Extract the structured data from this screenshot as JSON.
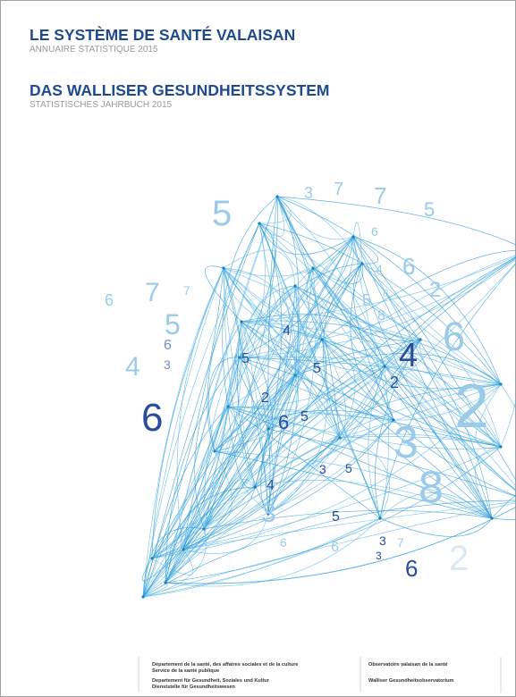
{
  "header": {
    "title_fr": "LE SYSTÈME DE SANTÉ VALAISAN",
    "subtitle_fr": "ANNUAIRE STATISTIQUE 2015",
    "title_de": "DAS WALLISER GESUNDHEITSSYSTEM",
    "subtitle_de": "STATISTISCHES JAHRBUCH 2015"
  },
  "cover_art": {
    "digits": [
      "5",
      "3",
      "7",
      "7",
      "5",
      "6",
      "6",
      "7",
      "7",
      "5",
      "4",
      "6",
      "3",
      "6",
      "4",
      "6",
      "2",
      "3",
      "8",
      "2",
      "5",
      "8",
      "8",
      "2",
      "6",
      "4",
      "6",
      "3",
      "7",
      "3",
      "2",
      "5",
      "5",
      "2",
      "6",
      "5",
      "4",
      "3",
      "5",
      "5",
      "4",
      "3",
      "6",
      "6"
    ]
  },
  "footer": {
    "left": [
      "Département de la santé, des affaires sociales et de la culture",
      "Service de la santé publique",
      "Departement für Gesundheit, Soziales und Kultur",
      "Dienststelle für Gesundheitswesen"
    ],
    "right": [
      "Observatoire valaisan de la santé",
      "Walliser Gesundheitsobservatorium"
    ]
  }
}
